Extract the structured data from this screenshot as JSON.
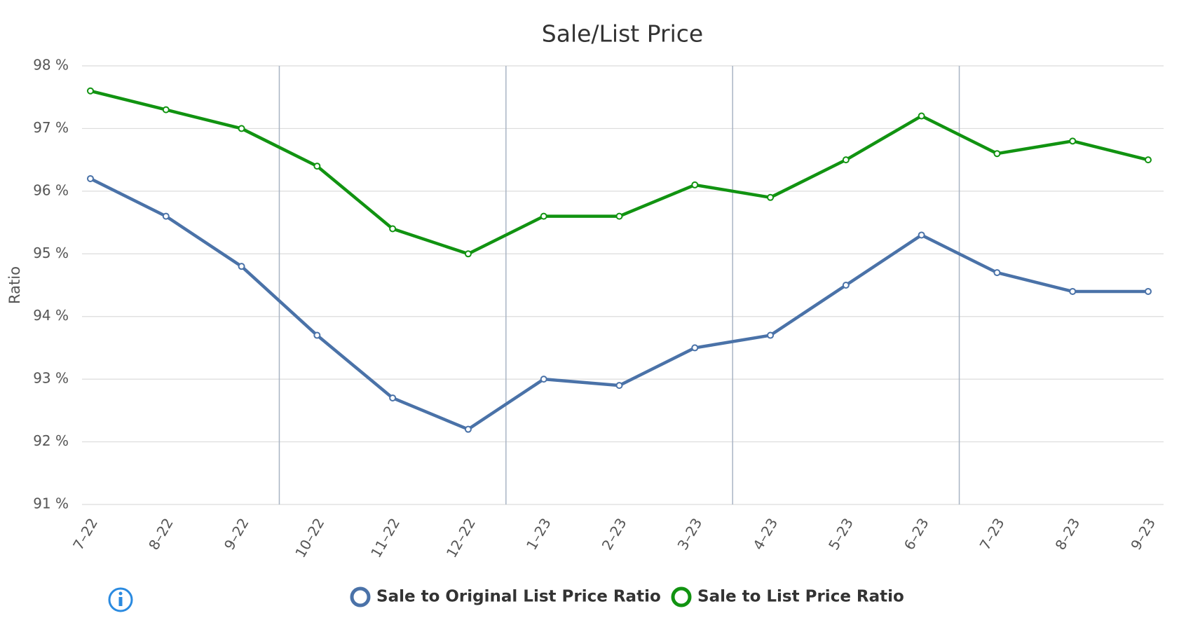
{
  "chart_data": {
    "type": "line",
    "title": "Sale/List Price",
    "y_label": "Ratio",
    "categories": [
      "7–22",
      "8–22",
      "9–22",
      "10–22",
      "11–22",
      "12–22",
      "1–23",
      "2–23",
      "3–23",
      "4–23",
      "5–23",
      "6–23",
      "7–23",
      "8–23",
      "9–23"
    ],
    "series": [
      {
        "name": "Sale to Original List Price Ratio",
        "color": "#4a72a8",
        "values": [
          96.2,
          95.6,
          94.8,
          93.7,
          92.7,
          92.2,
          93.0,
          92.9,
          93.5,
          93.7,
          94.5,
          95.3,
          94.7,
          94.4,
          94.4
        ]
      },
      {
        "name": "Sale to List Price Ratio",
        "color": "#119311",
        "values": [
          97.6,
          97.3,
          97.0,
          96.4,
          95.4,
          95.0,
          95.6,
          95.6,
          96.1,
          95.9,
          96.5,
          97.2,
          96.6,
          96.8,
          96.5
        ]
      }
    ],
    "ylim": [
      91,
      98
    ],
    "yticks": [
      {
        "value": 91,
        "label": "91 %"
      },
      {
        "value": 92,
        "label": "92 %"
      },
      {
        "value": 93,
        "label": "93 %"
      },
      {
        "value": 94,
        "label": "94 %"
      },
      {
        "value": 95,
        "label": "95 %"
      },
      {
        "value": 96,
        "label": "96 %"
      },
      {
        "value": 97,
        "label": "97 %"
      },
      {
        "value": 98,
        "label": "98 %"
      }
    ],
    "grid": true
  }
}
